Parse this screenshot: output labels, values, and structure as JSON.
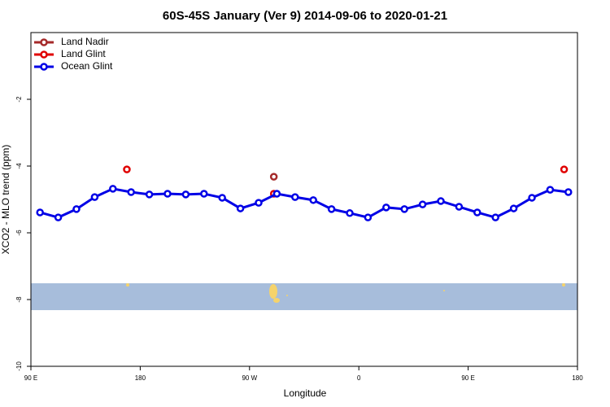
{
  "chart_data": {
    "type": "line",
    "title": "60S-45S January (Ver 9)   2014-09-06 to 2020-01-21",
    "x_label": "Longitude",
    "y_label": "XCO2 - MLO trend (ppm)",
    "xlim": [
      90,
      540
    ],
    "xticks": [
      {
        "value": 90,
        "label": "90 E"
      },
      180,
      {
        "value": 270,
        "label": "90 W"
      },
      {
        "value": 360,
        "label": "0"
      },
      {
        "value": 450,
        "label": "90 E"
      },
      {
        "value": 540,
        "label": "180"
      }
    ],
    "ylim": [
      -10,
      0
    ],
    "yticks": [
      -10,
      -8,
      -6,
      -4,
      -2
    ],
    "legend": "top-left",
    "series": [
      {
        "name": "Land Nadir",
        "color": "#a52a2a",
        "line": false,
        "x": [
          290
        ],
        "values": [
          -4.32
        ]
      },
      {
        "name": "Land Glint",
        "color": "#e00000",
        "line": false,
        "x": [
          169,
          290,
          529
        ],
        "values": [
          -4.1,
          -4.83,
          -4.1
        ]
      },
      {
        "name": "Ocean Glint",
        "color": "#0000e6",
        "line": true,
        "x": [
          97.5,
          112.5,
          127.5,
          142.5,
          157.5,
          172.5,
          187.5,
          202.5,
          217.5,
          232.5,
          247.5,
          262.5,
          277.5,
          292.5,
          307.5,
          322.5,
          337.5,
          352.5,
          367.5,
          382.5,
          397.5,
          412.5,
          427.5,
          442.5,
          457.5,
          472.5,
          487.5,
          502.5,
          517.5,
          532.5
        ],
        "values": [
          -5.39,
          -5.54,
          -5.29,
          -4.93,
          -4.68,
          -4.78,
          -4.85,
          -4.83,
          -4.85,
          -4.83,
          -4.95,
          -5.27,
          -5.1,
          -4.83,
          -4.93,
          -5.02,
          -5.29,
          -5.41,
          -5.54,
          -5.24,
          -5.29,
          -5.15,
          -5.05,
          -5.22,
          -5.39,
          -5.54,
          -5.27,
          -4.95,
          -4.71,
          -4.78
        ]
      }
    ]
  }
}
